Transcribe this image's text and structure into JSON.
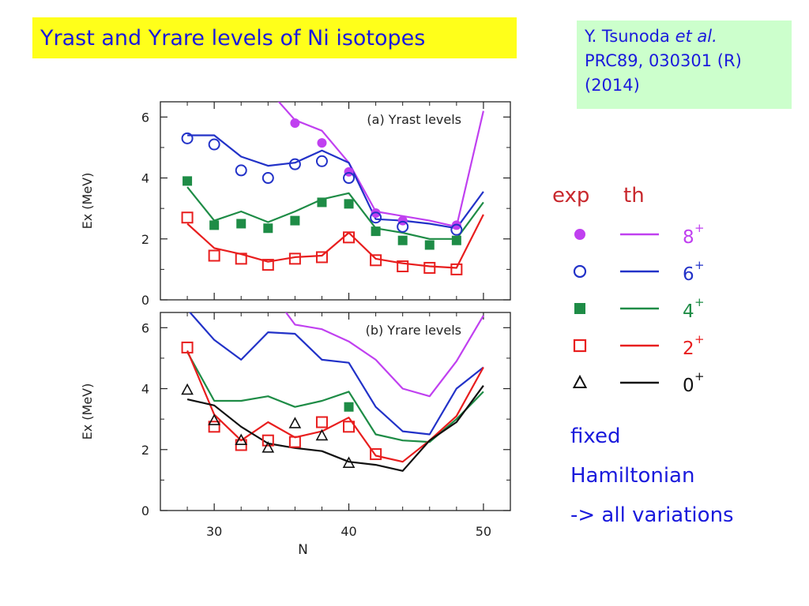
{
  "slide": {
    "title": "Yrast and Yrare levels of Ni isotopes",
    "reference": {
      "author": "Y. Tsunoda",
      "etal": "et al.",
      "journal": "PRC89, 030301 (R)",
      "year": "(2014)"
    },
    "notes": [
      "fixed",
      "Hamiltonian",
      "-> all variations"
    ]
  },
  "legend": {
    "exp_label": "exp",
    "th_label": "th",
    "header_color": "#c8282d",
    "items": [
      {
        "label": "8",
        "sup": "+",
        "color": "#c040f0",
        "marker": "filled-circle"
      },
      {
        "label": "6",
        "sup": "+",
        "color": "#2232c8",
        "marker": "open-circle"
      },
      {
        "label": "4",
        "sup": "+",
        "color": "#1e8c46",
        "marker": "filled-square"
      },
      {
        "label": "2",
        "sup": "+",
        "color": "#e81e1e",
        "marker": "open-square"
      },
      {
        "label": "0",
        "sup": "+",
        "color": "#111111",
        "marker": "open-triangle"
      }
    ]
  },
  "chart_data": [
    {
      "type": "line",
      "title": "(a) Yrast levels",
      "xlabel": "",
      "ylabel": "Ex (MeV)",
      "xlim": [
        26,
        52
      ],
      "ylim": [
        0,
        6.5
      ],
      "xticks": [
        "30",
        "40",
        "50"
      ],
      "yticks": [
        "0",
        "2",
        "4",
        "6"
      ],
      "series": [
        {
          "name": "8+",
          "color": "#c040f0",
          "th": [
            [
              34,
              6.9
            ],
            [
              36,
              5.9
            ],
            [
              38,
              5.55
            ],
            [
              40,
              4.5
            ],
            [
              42,
              2.9
            ],
            [
              44,
              2.75
            ],
            [
              46,
              2.6
            ],
            [
              48,
              2.4
            ],
            [
              50,
              6.2
            ]
          ],
          "exp": [
            [
              36,
              5.8
            ],
            [
              38,
              5.15
            ],
            [
              40,
              4.2
            ],
            [
              42,
              2.85
            ],
            [
              44,
              2.6
            ],
            [
              48,
              2.45
            ]
          ]
        },
        {
          "name": "6+",
          "color": "#2232c8",
          "th": [
            [
              28,
              5.4
            ],
            [
              30,
              5.4
            ],
            [
              32,
              4.7
            ],
            [
              34,
              4.4
            ],
            [
              36,
              4.5
            ],
            [
              38,
              4.9
            ],
            [
              40,
              4.5
            ],
            [
              42,
              2.65
            ],
            [
              44,
              2.6
            ],
            [
              46,
              2.5
            ],
            [
              48,
              2.35
            ],
            [
              50,
              3.55
            ]
          ],
          "exp": [
            [
              28,
              5.3
            ],
            [
              30,
              5.1
            ],
            [
              32,
              4.25
            ],
            [
              34,
              4.0
            ],
            [
              36,
              4.45
            ],
            [
              38,
              4.55
            ],
            [
              40,
              4.0
            ],
            [
              42,
              2.7
            ],
            [
              44,
              2.4
            ],
            [
              48,
              2.3
            ]
          ]
        },
        {
          "name": "4+",
          "color": "#1e8c46",
          "th": [
            [
              28,
              3.7
            ],
            [
              30,
              2.6
            ],
            [
              32,
              2.9
            ],
            [
              34,
              2.55
            ],
            [
              36,
              2.9
            ],
            [
              38,
              3.3
            ],
            [
              40,
              3.5
            ],
            [
              42,
              2.35
            ],
            [
              44,
              2.2
            ],
            [
              46,
              2.0
            ],
            [
              48,
              2.0
            ],
            [
              50,
              3.2
            ]
          ],
          "exp": [
            [
              28,
              3.9
            ],
            [
              30,
              2.45
            ],
            [
              32,
              2.5
            ],
            [
              34,
              2.35
            ],
            [
              36,
              2.6
            ],
            [
              38,
              3.2
            ],
            [
              40,
              3.15
            ],
            [
              42,
              2.25
            ],
            [
              44,
              1.95
            ],
            [
              46,
              1.8
            ],
            [
              48,
              1.95
            ]
          ]
        },
        {
          "name": "2+",
          "color": "#e81e1e",
          "th": [
            [
              28,
              2.5
            ],
            [
              30,
              1.7
            ],
            [
              32,
              1.5
            ],
            [
              34,
              1.25
            ],
            [
              36,
              1.4
            ],
            [
              38,
              1.45
            ],
            [
              40,
              2.2
            ],
            [
              42,
              1.35
            ],
            [
              44,
              1.2
            ],
            [
              46,
              1.1
            ],
            [
              48,
              1.05
            ],
            [
              50,
              2.8
            ]
          ],
          "exp": [
            [
              28,
              2.7
            ],
            [
              30,
              1.45
            ],
            [
              32,
              1.35
            ],
            [
              34,
              1.15
            ],
            [
              36,
              1.35
            ],
            [
              38,
              1.4
            ],
            [
              40,
              2.05
            ],
            [
              42,
              1.3
            ],
            [
              44,
              1.1
            ],
            [
              46,
              1.05
            ],
            [
              48,
              1.0
            ]
          ]
        }
      ]
    },
    {
      "type": "line",
      "title": "(b) Yrare levels",
      "xlabel": "N",
      "ylabel": "Ex (MeV)",
      "xlim": [
        26,
        52
      ],
      "ylim": [
        0,
        6.5
      ],
      "xticks": [
        "30",
        "40",
        "50"
      ],
      "yticks": [
        "0",
        "2",
        "4",
        "6"
      ],
      "series": [
        {
          "name": "8+",
          "color": "#c040f0",
          "th": [
            [
              35,
              6.7
            ],
            [
              36,
              6.1
            ],
            [
              38,
              5.95
            ],
            [
              40,
              5.55
            ],
            [
              42,
              4.95
            ],
            [
              44,
              4.0
            ],
            [
              46,
              3.75
            ],
            [
              48,
              4.9
            ],
            [
              50,
              6.4
            ]
          ],
          "exp": []
        },
        {
          "name": "6+",
          "color": "#2232c8",
          "th": [
            [
              28,
              6.6
            ],
            [
              30,
              5.6
            ],
            [
              32,
              4.95
            ],
            [
              34,
              5.85
            ],
            [
              36,
              5.8
            ],
            [
              38,
              4.95
            ],
            [
              40,
              4.85
            ],
            [
              42,
              3.4
            ],
            [
              44,
              2.6
            ],
            [
              46,
              2.5
            ],
            [
              48,
              4.0
            ],
            [
              50,
              4.7
            ]
          ],
          "exp": []
        },
        {
          "name": "4+",
          "color": "#1e8c46",
          "th": [
            [
              28,
              5.2
            ],
            [
              30,
              3.6
            ],
            [
              32,
              3.6
            ],
            [
              34,
              3.75
            ],
            [
              36,
              3.4
            ],
            [
              38,
              3.6
            ],
            [
              40,
              3.9
            ],
            [
              42,
              2.5
            ],
            [
              44,
              2.3
            ],
            [
              46,
              2.25
            ],
            [
              48,
              3.0
            ],
            [
              50,
              3.9
            ]
          ],
          "exp": [
            [
              40,
              3.4
            ]
          ]
        },
        {
          "name": "2+",
          "color": "#e81e1e",
          "th": [
            [
              28,
              5.25
            ],
            [
              30,
              3.15
            ],
            [
              32,
              2.3
            ],
            [
              34,
              2.9
            ],
            [
              36,
              2.4
            ],
            [
              38,
              2.6
            ],
            [
              40,
              3.05
            ],
            [
              42,
              1.8
            ],
            [
              44,
              1.6
            ],
            [
              46,
              2.3
            ],
            [
              48,
              3.1
            ],
            [
              50,
              4.7
            ]
          ],
          "exp": [
            [
              28,
              5.35
            ],
            [
              30,
              2.75
            ],
            [
              32,
              2.15
            ],
            [
              34,
              2.3
            ],
            [
              36,
              2.25
            ],
            [
              38,
              2.9
            ],
            [
              40,
              2.75
            ],
            [
              42,
              1.85
            ]
          ]
        },
        {
          "name": "0+",
          "color": "#111111",
          "th": [
            [
              28,
              3.65
            ],
            [
              30,
              3.45
            ],
            [
              32,
              2.75
            ],
            [
              34,
              2.2
            ],
            [
              36,
              2.05
            ],
            [
              38,
              1.95
            ],
            [
              40,
              1.6
            ],
            [
              42,
              1.5
            ],
            [
              44,
              1.3
            ],
            [
              46,
              2.3
            ],
            [
              48,
              2.9
            ],
            [
              50,
              4.1
            ]
          ],
          "exp": [
            [
              28,
              3.95
            ],
            [
              30,
              2.95
            ],
            [
              32,
              2.3
            ],
            [
              34,
              2.05
            ],
            [
              36,
              2.85
            ],
            [
              38,
              2.45
            ],
            [
              40,
              1.55
            ]
          ]
        }
      ]
    }
  ]
}
